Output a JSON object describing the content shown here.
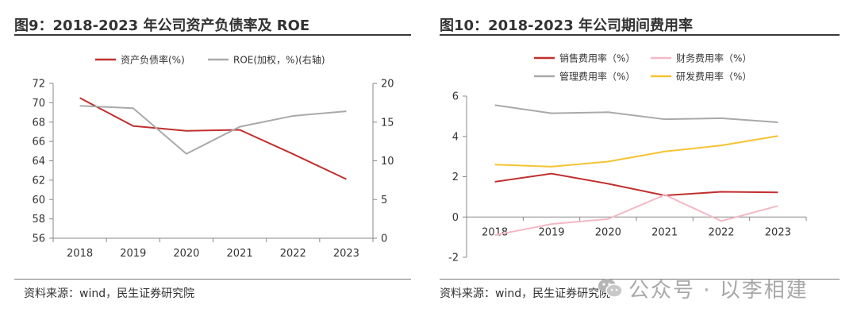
{
  "left": {
    "title": "图9：2018-2023 年公司资产负债率及 ROE",
    "source": "资料来源：wind，民生证券研究院"
  },
  "right": {
    "title": "图10：2018-2023 年公司期间费用率",
    "source": "资料来源：wind，民生证券研究院"
  },
  "watermark": {
    "text": "公众号 · 以李相建",
    "icon": "wechat-icon"
  },
  "chart_data": [
    {
      "type": "line",
      "categories": [
        "2018",
        "2019",
        "2020",
        "2021",
        "2022",
        "2023"
      ],
      "y_left": {
        "ticks": [
          56,
          58,
          60,
          62,
          64,
          66,
          68,
          70,
          72
        ],
        "ylim": [
          56,
          72
        ]
      },
      "y_right": {
        "ticks": [
          0,
          5,
          10,
          15,
          20
        ],
        "ylim": [
          0,
          20
        ]
      },
      "legend_position": "top",
      "grid": false,
      "series": [
        {
          "name": "资产负债率(%)",
          "axis": "left",
          "color": "#c0302f",
          "values": [
            70.5,
            67.6,
            67.1,
            67.2,
            64.7,
            62.1
          ]
        },
        {
          "name": "ROE(加权，%)(右轴)",
          "axis": "right",
          "color": "#a9a9a9",
          "values": [
            17.1,
            16.8,
            10.9,
            14.4,
            15.8,
            16.4
          ]
        }
      ]
    },
    {
      "type": "line",
      "categories": [
        "2018",
        "2019",
        "2020",
        "2021",
        "2022",
        "2023"
      ],
      "y_left": {
        "ticks": [
          -2,
          0,
          2,
          4,
          6
        ],
        "ylim": [
          -2,
          6
        ]
      },
      "legend_position": "top",
      "grid": false,
      "series": [
        {
          "name": "销售费用率（%）",
          "color": "#c0302f",
          "values": [
            1.75,
            2.15,
            1.65,
            1.07,
            1.25,
            1.22
          ]
        },
        {
          "name": "财务费用率（%）",
          "color": "#f4b8c4",
          "values": [
            -0.9,
            -0.35,
            -0.1,
            1.1,
            -0.2,
            0.55
          ]
        },
        {
          "name": "管理费用率（%）",
          "color": "#a9a9a9",
          "values": [
            5.55,
            5.15,
            5.2,
            4.85,
            4.9,
            4.7
          ]
        },
        {
          "name": "研发费用率（%）",
          "color": "#f5c332",
          "values": [
            2.6,
            2.5,
            2.75,
            3.25,
            3.55,
            4.02
          ]
        }
      ]
    }
  ]
}
